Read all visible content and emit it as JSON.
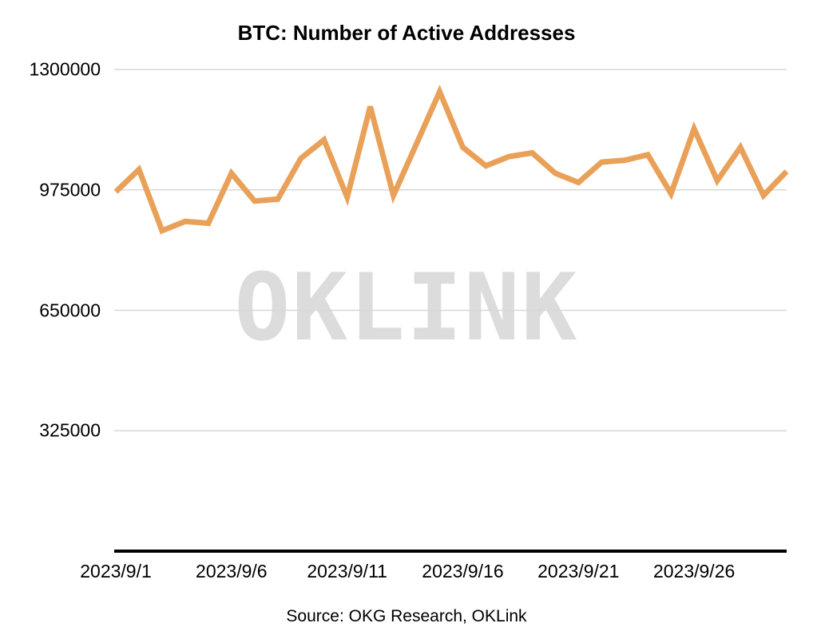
{
  "title": "BTC: Number of Active Addresses",
  "source": "Source: OKG Research, OKLink",
  "watermark": "OKLINK",
  "colors": {
    "line": "#E9A159",
    "grid": "#d8d8d8",
    "axis": "#000000",
    "watermark": "#dcdcdc"
  },
  "chart_data": {
    "type": "line",
    "title": "BTC: Number of Active Addresses",
    "xlabel": "",
    "ylabel": "",
    "legend": "none",
    "grid": "horizontal",
    "ylim": [
      0,
      1300000
    ],
    "y_ticks": [
      1300000,
      975000,
      650000,
      325000
    ],
    "x_tick_labels": [
      "2023/9/1",
      "2023/9/6",
      "2023/9/11",
      "2023/9/16",
      "2023/9/21",
      "2023/9/26"
    ],
    "x_tick_indices": [
      0,
      5,
      10,
      15,
      20,
      25
    ],
    "x": [
      "2023/9/1",
      "2023/9/2",
      "2023/9/3",
      "2023/9/4",
      "2023/9/5",
      "2023/9/6",
      "2023/9/7",
      "2023/9/8",
      "2023/9/9",
      "2023/9/10",
      "2023/9/11",
      "2023/9/12",
      "2023/9/13",
      "2023/9/14",
      "2023/9/15",
      "2023/9/16",
      "2023/9/17",
      "2023/9/18",
      "2023/9/19",
      "2023/9/20",
      "2023/9/21",
      "2023/9/22",
      "2023/9/23",
      "2023/9/24",
      "2023/9/25",
      "2023/9/26",
      "2023/9/27",
      "2023/9/28",
      "2023/9/29",
      "2023/9/30"
    ],
    "values": [
      970000,
      1030000,
      865000,
      890000,
      885000,
      1020000,
      945000,
      950000,
      1060000,
      1110000,
      955000,
      1200000,
      960000,
      1100000,
      1240000,
      1090000,
      1040000,
      1065000,
      1075000,
      1020000,
      995000,
      1050000,
      1055000,
      1070000,
      965000,
      1140000,
      1000000,
      1090000,
      960000,
      1025000
    ]
  }
}
